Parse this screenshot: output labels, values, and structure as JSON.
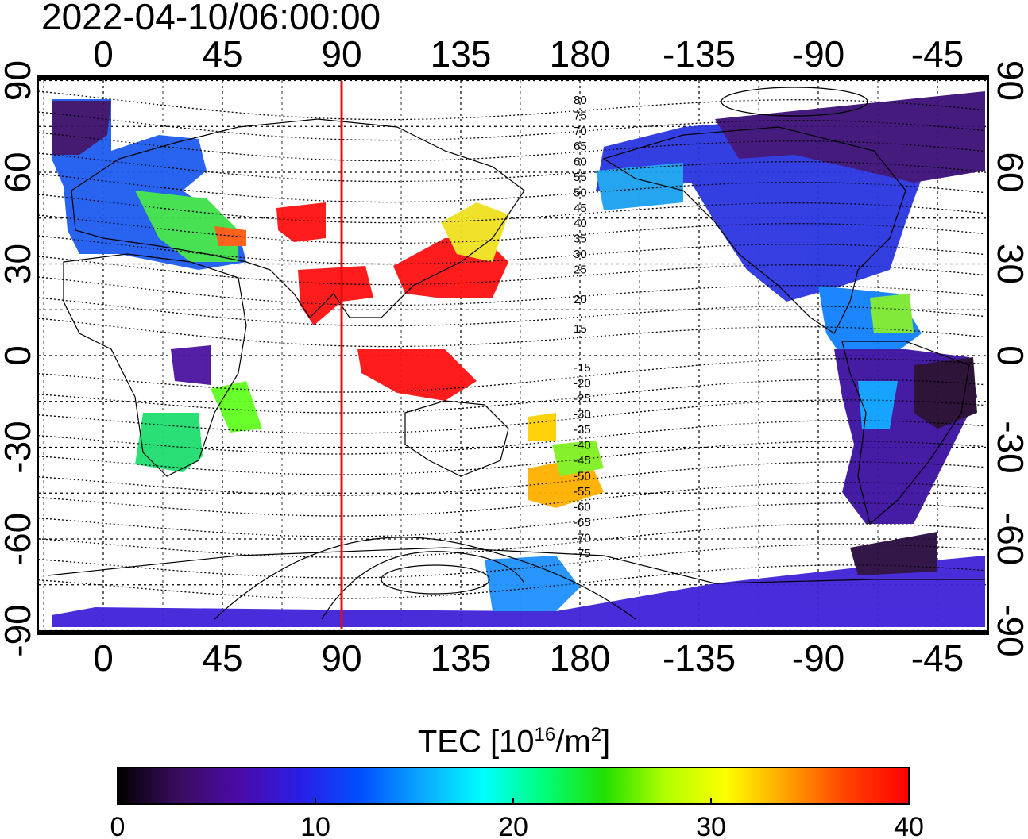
{
  "title": "2022-04-10/06:00:00",
  "map": {
    "x_ticks_bottom": [
      "0",
      "45",
      "90",
      "135",
      "180",
      "-135",
      "-90",
      "-45"
    ],
    "x_ticks_top": [
      "0",
      "45",
      "90",
      "135",
      "180",
      "-135",
      "-90",
      "-45"
    ],
    "y_ticks_left": [
      "90",
      "60",
      "30",
      "0",
      "-30",
      "-60",
      "-90"
    ],
    "y_ticks_right": [
      "90",
      "60",
      "30",
      "0",
      "-30",
      "-60",
      "-90"
    ],
    "terminator_longitude": 90,
    "contour_labels_north": [
      "80",
      "75",
      "70",
      "65",
      "60",
      "55",
      "50",
      "45",
      "40",
      "35",
      "30",
      "25",
      "20",
      "15"
    ],
    "contour_labels_south": [
      "-15",
      "-20",
      "-25",
      "-30",
      "-35",
      "-40",
      "-45",
      "-50",
      "-55",
      "-60",
      "-65",
      "-70",
      "-75"
    ]
  },
  "colorbar": {
    "label_main": "TEC  [10",
    "label_exp": "16",
    "label_unit": "/m",
    "label_unit_exp": "2",
    "label_close": "]",
    "ticks": [
      "0",
      "10",
      "20",
      "30",
      "40"
    ],
    "colors": [
      "#000000",
      "#3a0d5e",
      "#4b0aa8",
      "#2a1ee6",
      "#0050ff",
      "#0aa8ff",
      "#00ffff",
      "#00ff7a",
      "#20e000",
      "#b0ff00",
      "#ffff00",
      "#ffa000",
      "#ff4000",
      "#ff0000"
    ]
  }
}
